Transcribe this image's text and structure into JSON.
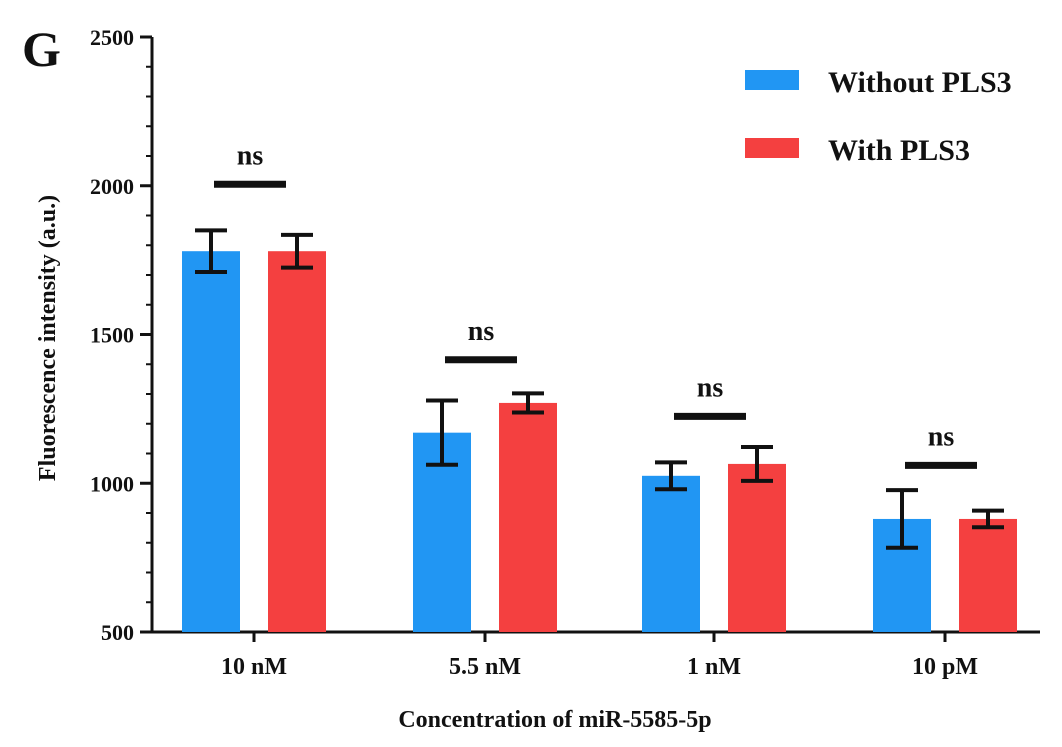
{
  "panel_label": "G",
  "chart_data": {
    "type": "bar",
    "title": "",
    "xlabel": "Concentration of miR-5585-5p",
    "ylabel": "Fluorescence intensity (a.u.)",
    "categories": [
      "10 nM",
      "5.5 nM",
      "1 nM",
      "10 pM"
    ],
    "ylim": [
      500,
      2500
    ],
    "yticks": [
      500,
      1000,
      1500,
      2000,
      2500
    ],
    "ytick_labels": [
      "500",
      "1000",
      "1500",
      "2000",
      "2500"
    ],
    "series": [
      {
        "name": "Without PLS3",
        "color": "#2196F3",
        "values": [
          1780,
          1170,
          1025,
          880
        ],
        "error": [
          70,
          108,
          45,
          97
        ]
      },
      {
        "name": "With PLS3",
        "color": "#F44040",
        "values": [
          1780,
          1270,
          1065,
          880
        ],
        "error": [
          55,
          32,
          57,
          28
        ]
      }
    ],
    "significance": [
      {
        "label": "ns",
        "bar_level": 2005
      },
      {
        "label": "ns",
        "bar_level": 1415
      },
      {
        "label": "ns",
        "bar_level": 1225
      },
      {
        "label": "ns",
        "bar_level": 1060
      }
    ],
    "legend_position": "top-right",
    "grid": false
  }
}
